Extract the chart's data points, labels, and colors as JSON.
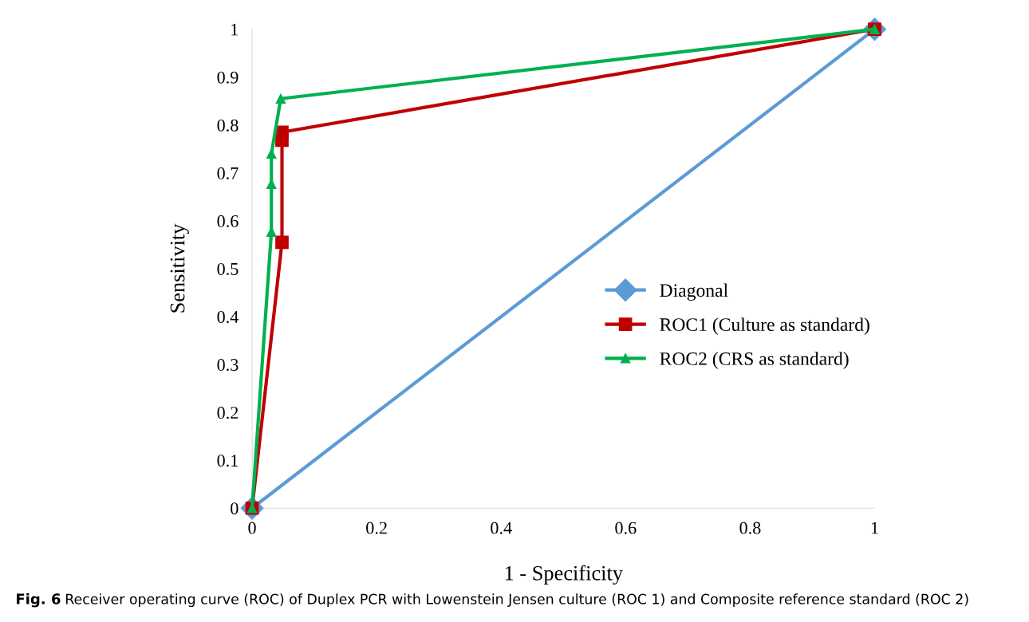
{
  "chart_data": {
    "type": "line",
    "xlabel": "1 - Specificity",
    "ylabel": "Sensitivity",
    "series": [
      {
        "name": "Diagonal",
        "color": "#5b9bd5",
        "marker": "diamond",
        "x": [
          0,
          1
        ],
        "values": [
          0,
          1
        ]
      },
      {
        "name": "ROC1 (Culture as standard)",
        "color": "#c00000",
        "marker": "square",
        "x": [
          0,
          0.048,
          0.048,
          0.048,
          1
        ],
        "values": [
          0,
          0.555,
          0.768,
          0.785,
          1
        ]
      },
      {
        "name": "ROC2 (CRS as standard)",
        "color": "#00b050",
        "marker": "triangle",
        "x": [
          0,
          0.031,
          0.031,
          0.031,
          0.046,
          1
        ],
        "values": [
          0,
          0.577,
          0.677,
          0.74,
          0.855,
          1
        ]
      }
    ],
    "xlim": [
      0,
      1
    ],
    "ylim": [
      0,
      1
    ],
    "xticks": [
      0,
      0.2,
      0.4,
      0.6,
      0.8,
      1
    ],
    "yticks": [
      0,
      0.1,
      0.2,
      0.3,
      0.4,
      0.5,
      0.6,
      0.7,
      0.8,
      0.9,
      1
    ],
    "legend": "right",
    "grid": false,
    "annotations": [
      "Fig. 6",
      "Receiver operating curve (ROC) of Duplex PCR with Lowenstein Jensen culture (ROC 1) and Composite reference standard (ROC 2)"
    ]
  }
}
